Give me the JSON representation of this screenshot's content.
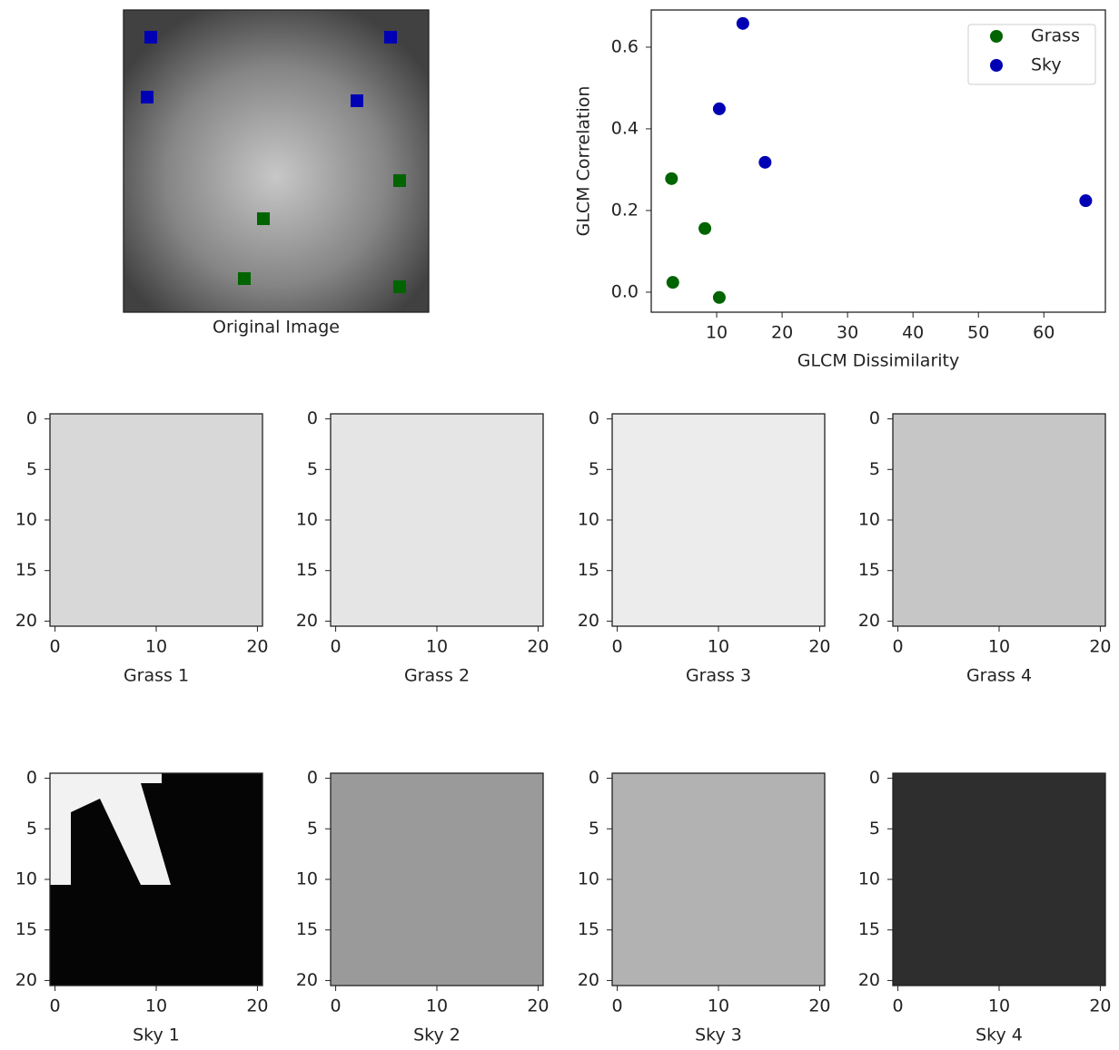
{
  "chart_data": [
    {
      "type": "image",
      "xlabel": "Original Image",
      "color": "#6a6a6a"
    },
    {
      "type": "scatter",
      "xlabel": "GLCM Dissimilarity",
      "ylabel": "GLCM Correlation",
      "xlim": [
        0,
        69.4
      ],
      "ylim": [
        -0.049,
        0.691
      ],
      "xticks": [
        10,
        20,
        30,
        40,
        50,
        60
      ],
      "yticks": [
        {
          "value": 0,
          "label": "0.0"
        },
        0.2,
        0.4,
        0.6
      ],
      "legend": "upper right",
      "series": [
        {
          "name": "Grass",
          "color": "#006400",
          "x": [
            3.1,
            8.2,
            3.3,
            10.4
          ],
          "values": [
            0.278,
            0.156,
            0.024,
            -0.013
          ]
        },
        {
          "name": "Sky",
          "color": "#0000b4",
          "x": [
            14.0,
            10.4,
            17.4,
            66.4
          ],
          "values": [
            0.658,
            0.449,
            0.318,
            0.224
          ]
        }
      ]
    },
    {
      "type": "image",
      "xlabel": "Grass 1",
      "color": "#d8d8d8",
      "xlim": [
        -0.5,
        20.5
      ],
      "ylim": [
        20.5,
        -0.5
      ],
      "xticks": [
        0,
        10,
        20
      ],
      "yticks": [
        0,
        5,
        10,
        15,
        20
      ]
    },
    {
      "type": "image",
      "xlabel": "Grass 2",
      "color": "#e5e5e5",
      "xlim": [
        -0.5,
        20.5
      ],
      "ylim": [
        20.5,
        -0.5
      ],
      "xticks": [
        0,
        10,
        20
      ],
      "yticks": [
        0,
        5,
        10,
        15,
        20
      ]
    },
    {
      "type": "image",
      "xlabel": "Grass 3",
      "color": "#ececec",
      "xlim": [
        -0.5,
        20.5
      ],
      "ylim": [
        20.5,
        -0.5
      ],
      "xticks": [
        0,
        10,
        20
      ],
      "yticks": [
        0,
        5,
        10,
        15,
        20
      ]
    },
    {
      "type": "image",
      "xlabel": "Grass 4",
      "color": "#c6c6c6",
      "xlim": [
        -0.5,
        20.5
      ],
      "ylim": [
        20.5,
        -0.5
      ],
      "xticks": [
        0,
        10,
        20
      ],
      "yticks": [
        0,
        5,
        10,
        15,
        20
      ]
    },
    {
      "type": "image",
      "xlabel": "Sky 1",
      "color": "#050505",
      "xlim": [
        -0.5,
        20.5
      ],
      "ylim": [
        20.5,
        -0.5
      ],
      "xticks": [
        0,
        10,
        20
      ],
      "yticks": [
        0,
        5,
        10,
        15,
        20
      ]
    },
    {
      "type": "image",
      "xlabel": "Sky 2",
      "color": "#9a9a9a",
      "xlim": [
        -0.5,
        20.5
      ],
      "ylim": [
        20.5,
        -0.5
      ],
      "xticks": [
        0,
        10,
        20
      ],
      "yticks": [
        0,
        5,
        10,
        15,
        20
      ]
    },
    {
      "type": "image",
      "xlabel": "Sky 3",
      "color": "#b2b2b2",
      "xlim": [
        -0.5,
        20.5
      ],
      "ylim": [
        20.5,
        -0.5
      ],
      "xticks": [
        0,
        10,
        20
      ],
      "yticks": [
        0,
        5,
        10,
        15,
        20
      ]
    },
    {
      "type": "image",
      "xlabel": "Sky 4",
      "color": "#2e2e2e",
      "xlim": [
        -0.5,
        20.5
      ],
      "ylim": [
        20.5,
        -0.5
      ],
      "xticks": [
        0,
        10,
        20
      ],
      "yticks": [
        0,
        5,
        10,
        15,
        20
      ]
    }
  ]
}
